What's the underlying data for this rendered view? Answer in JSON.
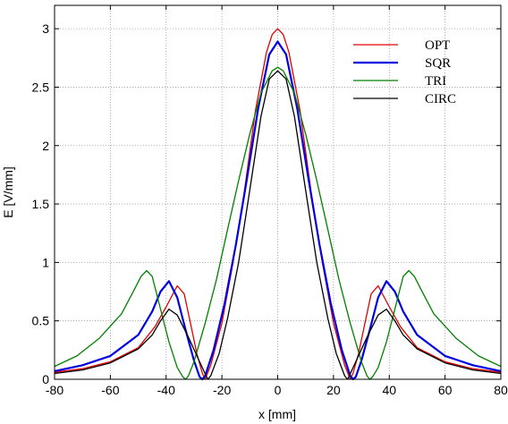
{
  "chart_data": {
    "type": "line",
    "title": "",
    "xlabel": "x [mm]",
    "ylabel": "E [V/mm]",
    "xlim": [
      -80,
      80
    ],
    "ylim": [
      0,
      3.2
    ],
    "grid": true,
    "legend_position": "top-right",
    "x_ticks": [
      -80,
      -60,
      -40,
      -20,
      0,
      20,
      40,
      60,
      80
    ],
    "x_tick_labels": [
      "-80",
      "-60",
      "-40",
      "-20",
      "0",
      "20",
      "40",
      "60",
      "80"
    ],
    "y_ticks": [
      0,
      0.5,
      1,
      1.5,
      2,
      2.5,
      3
    ],
    "y_tick_labels": [
      "0",
      "0.5",
      "1",
      "1.5",
      "2",
      "2.5",
      "3"
    ],
    "series": [
      {
        "name": "OPT",
        "color": "#e00000",
        "points": [
          [
            -80,
            0.06
          ],
          [
            -70,
            0.09
          ],
          [
            -60,
            0.15
          ],
          [
            -50,
            0.27
          ],
          [
            -44,
            0.45
          ],
          [
            -40,
            0.62
          ],
          [
            -36,
            0.8
          ],
          [
            -33.5,
            0.73
          ],
          [
            -31,
            0.45
          ],
          [
            -29,
            0.22
          ],
          [
            -27,
            0.05
          ],
          [
            -26,
            0.0
          ],
          [
            -24,
            0.12
          ],
          [
            -20,
            0.48
          ],
          [
            -16,
            1.0
          ],
          [
            -12,
            1.6
          ],
          [
            -8,
            2.3
          ],
          [
            -4,
            2.8
          ],
          [
            -2,
            2.95
          ],
          [
            0,
            3.0
          ],
          [
            2,
            2.95
          ],
          [
            4,
            2.8
          ],
          [
            8,
            2.3
          ],
          [
            12,
            1.6
          ],
          [
            16,
            1.0
          ],
          [
            20,
            0.48
          ],
          [
            24,
            0.12
          ],
          [
            26,
            0.0
          ],
          [
            27,
            0.05
          ],
          [
            29,
            0.22
          ],
          [
            31,
            0.45
          ],
          [
            33.5,
            0.73
          ],
          [
            36,
            0.8
          ],
          [
            40,
            0.62
          ],
          [
            44,
            0.45
          ],
          [
            50,
            0.27
          ],
          [
            60,
            0.15
          ],
          [
            70,
            0.09
          ],
          [
            80,
            0.06
          ]
        ]
      },
      {
        "name": "SQR",
        "color": "#0000e0",
        "points": [
          [
            -80,
            0.07
          ],
          [
            -70,
            0.12
          ],
          [
            -60,
            0.2
          ],
          [
            -50,
            0.38
          ],
          [
            -45,
            0.58
          ],
          [
            -42,
            0.75
          ],
          [
            -39,
            0.84
          ],
          [
            -36,
            0.7
          ],
          [
            -33,
            0.42
          ],
          [
            -30,
            0.16
          ],
          [
            -28,
            0.02
          ],
          [
            -27,
            0.0
          ],
          [
            -26,
            0.03
          ],
          [
            -23,
            0.25
          ],
          [
            -19,
            0.65
          ],
          [
            -15,
            1.15
          ],
          [
            -11,
            1.72
          ],
          [
            -7,
            2.32
          ],
          [
            -3,
            2.78
          ],
          [
            0,
            2.89
          ],
          [
            3,
            2.78
          ],
          [
            7,
            2.32
          ],
          [
            11,
            1.72
          ],
          [
            15,
            1.15
          ],
          [
            19,
            0.65
          ],
          [
            23,
            0.25
          ],
          [
            26,
            0.03
          ],
          [
            27,
            0.0
          ],
          [
            28,
            0.02
          ],
          [
            30,
            0.16
          ],
          [
            33,
            0.42
          ],
          [
            36,
            0.7
          ],
          [
            39,
            0.84
          ],
          [
            42,
            0.75
          ],
          [
            45,
            0.58
          ],
          [
            50,
            0.38
          ],
          [
            60,
            0.2
          ],
          [
            70,
            0.12
          ],
          [
            80,
            0.07
          ]
        ]
      },
      {
        "name": "TRI",
        "color": "#008000",
        "points": [
          [
            -80,
            0.11
          ],
          [
            -72,
            0.2
          ],
          [
            -64,
            0.35
          ],
          [
            -56,
            0.56
          ],
          [
            -52,
            0.74
          ],
          [
            -49,
            0.88
          ],
          [
            -47,
            0.93
          ],
          [
            -45,
            0.88
          ],
          [
            -42,
            0.6
          ],
          [
            -39,
            0.32
          ],
          [
            -36,
            0.1
          ],
          [
            -34,
            0.02
          ],
          [
            -33,
            0.0
          ],
          [
            -32,
            0.03
          ],
          [
            -30,
            0.15
          ],
          [
            -26,
            0.48
          ],
          [
            -22,
            0.85
          ],
          [
            -18,
            1.28
          ],
          [
            -14,
            1.7
          ],
          [
            -10,
            2.1
          ],
          [
            -6,
            2.45
          ],
          [
            -2,
            2.64
          ],
          [
            0,
            2.67
          ],
          [
            2,
            2.64
          ],
          [
            6,
            2.45
          ],
          [
            10,
            2.1
          ],
          [
            14,
            1.7
          ],
          [
            18,
            1.28
          ],
          [
            22,
            0.85
          ],
          [
            26,
            0.48
          ],
          [
            30,
            0.15
          ],
          [
            32,
            0.03
          ],
          [
            33,
            0.0
          ],
          [
            34,
            0.02
          ],
          [
            36,
            0.1
          ],
          [
            39,
            0.32
          ],
          [
            42,
            0.6
          ],
          [
            45,
            0.88
          ],
          [
            47,
            0.93
          ],
          [
            49,
            0.88
          ],
          [
            52,
            0.74
          ],
          [
            56,
            0.56
          ],
          [
            64,
            0.35
          ],
          [
            72,
            0.2
          ],
          [
            80,
            0.11
          ]
        ]
      },
      {
        "name": "CIRC",
        "color": "#000000",
        "points": [
          [
            -80,
            0.05
          ],
          [
            -70,
            0.08
          ],
          [
            -60,
            0.14
          ],
          [
            -50,
            0.26
          ],
          [
            -45,
            0.38
          ],
          [
            -42,
            0.5
          ],
          [
            -39,
            0.6
          ],
          [
            -36,
            0.55
          ],
          [
            -32,
            0.36
          ],
          [
            -28,
            0.15
          ],
          [
            -25.5,
            0.02
          ],
          [
            -25,
            0.0
          ],
          [
            -24,
            0.03
          ],
          [
            -21,
            0.22
          ],
          [
            -18,
            0.52
          ],
          [
            -14,
            1.0
          ],
          [
            -10,
            1.62
          ],
          [
            -6,
            2.25
          ],
          [
            -3,
            2.57
          ],
          [
            0,
            2.64
          ],
          [
            3,
            2.57
          ],
          [
            6,
            2.25
          ],
          [
            10,
            1.62
          ],
          [
            14,
            1.0
          ],
          [
            18,
            0.52
          ],
          [
            21,
            0.22
          ],
          [
            24,
            0.03
          ],
          [
            25,
            0.0
          ],
          [
            25.5,
            0.02
          ],
          [
            28,
            0.15
          ],
          [
            32,
            0.36
          ],
          [
            36,
            0.55
          ],
          [
            39,
            0.6
          ],
          [
            42,
            0.5
          ],
          [
            45,
            0.38
          ],
          [
            50,
            0.26
          ],
          [
            60,
            0.14
          ],
          [
            70,
            0.08
          ],
          [
            80,
            0.05
          ]
        ]
      }
    ]
  }
}
